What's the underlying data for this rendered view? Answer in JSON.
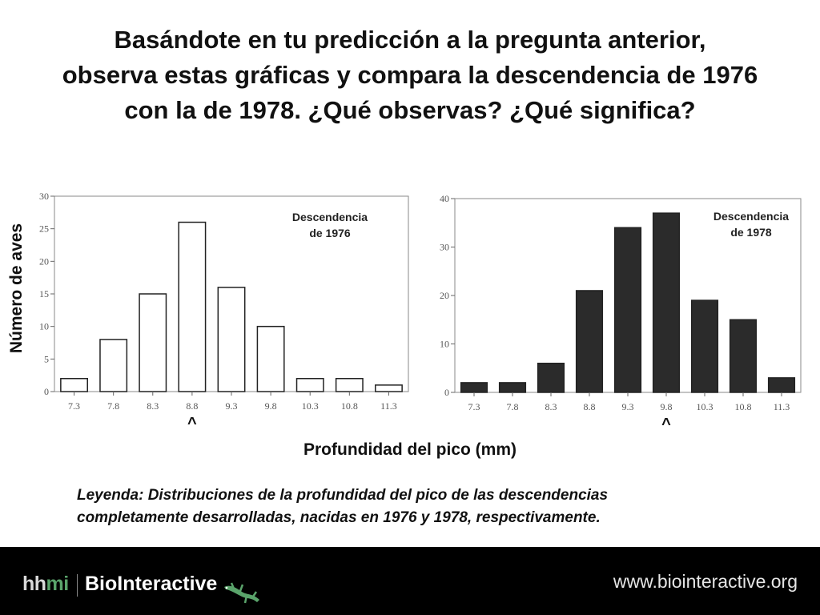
{
  "title": {
    "line1": "Basándote en tu predicción a la pregunta anterior,",
    "line2": "observa estas gráficas y compara la descendencia de 1976",
    "line3": "con la de 1978. ¿Qué observas? ¿Qué significa?"
  },
  "y_axis_title": "Número de aves",
  "x_axis_title": "Profundidad del pico (mm)",
  "caption": {
    "line1": "Leyenda: Distribuciones de la profundidad del pico de las descendencias",
    "line2": "completamente desarrolladas, nacidas en 1976 y 1978, respectivamente."
  },
  "footer": {
    "brand_hh": "hh",
    "brand_mi": "mi",
    "product": "BioInteractive",
    "url": "www.biointeractive.org"
  },
  "colors": {
    "footer_bg": "#000000",
    "accent_green": "#5aa46b",
    "bar_dark": "#2b2b2b"
  },
  "chart_data": [
    {
      "type": "bar",
      "legend_label": [
        "Descendencia",
        "de 1976"
      ],
      "categories": [
        "7.3",
        "7.8",
        "8.3",
        "8.8",
        "9.3",
        "9.8",
        "10.3",
        "10.8",
        "11.3"
      ],
      "values": [
        2,
        8,
        15,
        26,
        16,
        10,
        2,
        2,
        1
      ],
      "ylim": [
        0,
        30
      ],
      "yticks": [
        0,
        5,
        10,
        15,
        20,
        25,
        30
      ],
      "bar_fill": "#ffffff",
      "marker": {
        "symbol": "^",
        "category": "8.8"
      },
      "grid": false
    },
    {
      "type": "bar",
      "legend_label": [
        "Descendencia",
        "de 1978"
      ],
      "categories": [
        "7.3",
        "7.8",
        "8.3",
        "8.8",
        "9.3",
        "9.8",
        "10.3",
        "10.8",
        "11.3"
      ],
      "values": [
        2,
        2,
        6,
        21,
        34,
        37,
        19,
        15,
        3
      ],
      "ylim": [
        0,
        40
      ],
      "yticks": [
        0,
        10,
        20,
        30,
        40
      ],
      "bar_fill": "#2b2b2b",
      "marker": {
        "symbol": "^",
        "category": "9.8"
      },
      "grid": false
    }
  ]
}
